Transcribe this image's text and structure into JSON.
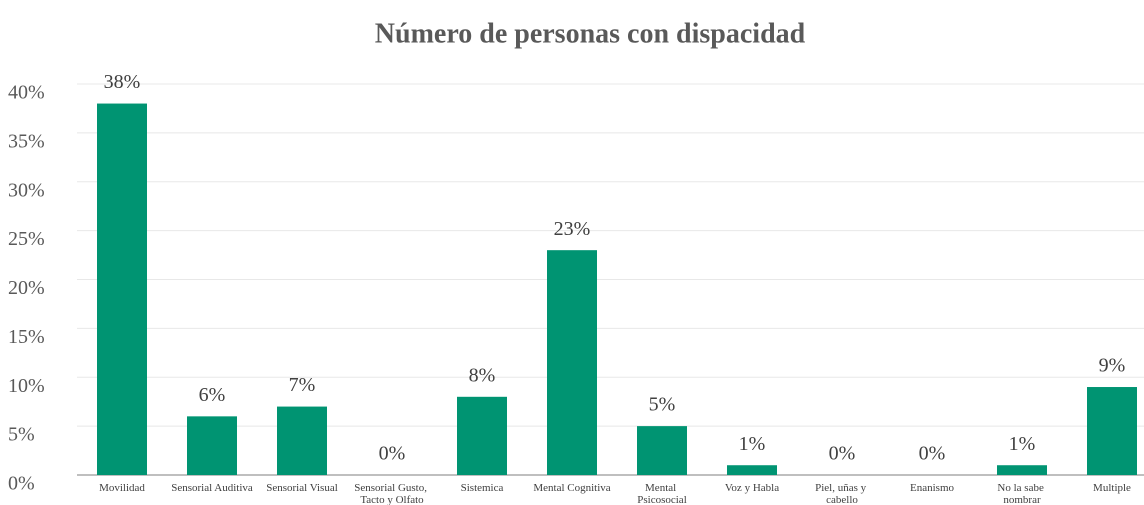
{
  "chart_data": {
    "type": "bar",
    "title": "Número de personas con dispacidad",
    "categories": [
      "Movilidad",
      "Sensorial Auditiva",
      "Sensorial Visual",
      "Sensorial Gusto,\nTacto y Olfato",
      "Sistemica",
      "Mental Cognitiva",
      "Mental\nPsicosocial",
      "Voz y Habla",
      "Piel, uñas y\ncabello",
      "Enanismo",
      "No la sabe\nnombrar",
      "Multiple"
    ],
    "values": [
      38,
      6,
      7,
      0,
      8,
      23,
      5,
      1,
      0,
      0,
      1,
      9
    ],
    "value_labels": [
      "38%",
      "6%",
      "7%",
      "0%",
      "8%",
      "23%",
      "5%",
      "1%",
      "0%",
      "0%",
      "1%",
      "9%"
    ],
    "color": "#009472",
    "ylim": [
      0,
      40
    ],
    "yticks": [
      {
        "value": 0,
        "label": "0%"
      },
      {
        "value": 5,
        "label": "5%"
      },
      {
        "value": 10,
        "label": "10%"
      },
      {
        "value": 15,
        "label": "15%"
      },
      {
        "value": 20,
        "label": "20%"
      },
      {
        "value": 25,
        "label": "25%"
      },
      {
        "value": 30,
        "label": "30%"
      },
      {
        "value": 35,
        "label": "35%"
      },
      {
        "value": 40,
        "label": "40%"
      }
    ],
    "grid": true
  }
}
